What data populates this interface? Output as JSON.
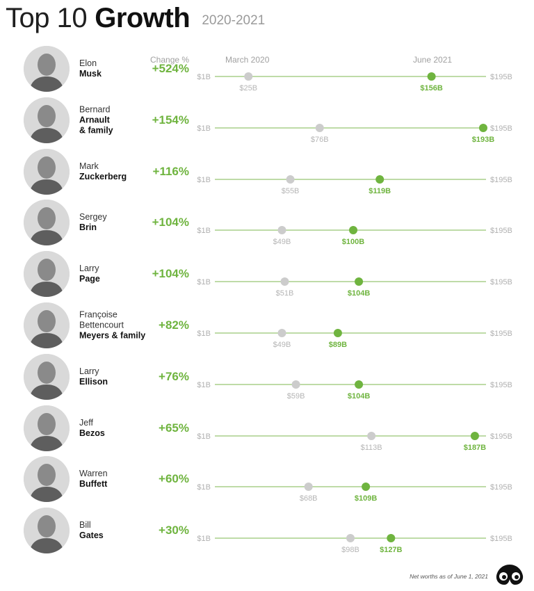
{
  "title": {
    "light": "Top 10",
    "bold": "Growth",
    "years": "2020-2021"
  },
  "headers": {
    "change": "Change %",
    "start": "March 2020",
    "end": "June 2021"
  },
  "colors": {
    "green": "#6fb43f",
    "gray": "#cccccc",
    "line": "#a8cf8a",
    "gray_text": "#b5b5b5"
  },
  "chart_data": {
    "type": "dumbbell",
    "title": "Top 10 Growth",
    "subtitle": "2020-2021",
    "axis": {
      "min_label": "$1B",
      "max_label": "$195B",
      "min": 1,
      "max": 195,
      "unit": "billion USD"
    },
    "series": [
      {
        "name": "March 2020",
        "color": "#cccccc"
      },
      {
        "name": "June 2021",
        "color": "#6fb43f"
      }
    ],
    "rows": [
      {
        "first": "Elon",
        "last": [
          "Musk"
        ],
        "change": "+524%",
        "start": 25,
        "end": 156,
        "start_label": "$25B",
        "end_label": "$156B",
        "photo_icon": "portrait-icon"
      },
      {
        "first": "Bernard",
        "last": [
          "Arnault",
          "& family"
        ],
        "change": "+154%",
        "start": 76,
        "end": 193,
        "start_label": "$76B",
        "end_label": "$193B",
        "photo_icon": "portrait-icon"
      },
      {
        "first": "Mark",
        "last": [
          "Zuckerberg"
        ],
        "change": "+116%",
        "start": 55,
        "end": 119,
        "start_label": "$55B",
        "end_label": "$119B",
        "photo_icon": "portrait-icon"
      },
      {
        "first": "Sergey",
        "last": [
          "Brin"
        ],
        "change": "+104%",
        "start": 49,
        "end": 100,
        "start_label": "$49B",
        "end_label": "$100B",
        "photo_icon": "portrait-icon"
      },
      {
        "first": "Larry",
        "last": [
          "Page"
        ],
        "change": "+104%",
        "start": 51,
        "end": 104,
        "start_label": "$51B",
        "end_label": "$104B",
        "photo_icon": "portrait-icon"
      },
      {
        "first": "Françoise\nBettencourt",
        "last": [
          "Meyers & family"
        ],
        "change": "+82%",
        "start": 49,
        "end": 89,
        "start_label": "$49B",
        "end_label": "$89B",
        "photo_icon": "portrait-icon"
      },
      {
        "first": "Larry",
        "last": [
          "Ellison"
        ],
        "change": "+76%",
        "start": 59,
        "end": 104,
        "start_label": "$59B",
        "end_label": "$104B",
        "photo_icon": "portrait-icon"
      },
      {
        "first": "Jeff",
        "last": [
          "Bezos"
        ],
        "change": "+65%",
        "start": 113,
        "end": 187,
        "start_label": "$113B",
        "end_label": "$187B",
        "photo_icon": "portrait-icon"
      },
      {
        "first": "Warren",
        "last": [
          "Buffett"
        ],
        "change": "+60%",
        "start": 68,
        "end": 109,
        "start_label": "$68B",
        "end_label": "$109B",
        "photo_icon": "portrait-icon"
      },
      {
        "first": "Bill",
        "last": [
          "Gates"
        ],
        "change": "+30%",
        "start": 98,
        "end": 127,
        "start_label": "$98B",
        "end_label": "$127B",
        "photo_icon": "portrait-icon"
      }
    ]
  },
  "footer": {
    "note": "Net worths as of June 1, 2021",
    "logo_icon": "binoculars-logo-icon"
  }
}
